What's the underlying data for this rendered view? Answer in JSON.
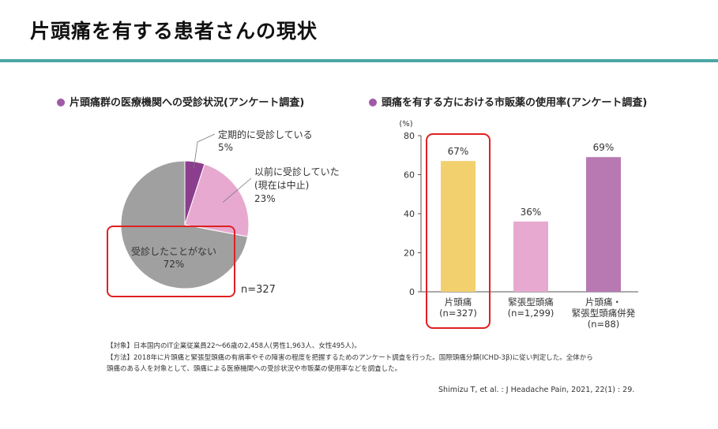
{
  "page": {
    "title": "片頭痛を有する患者さんの現状"
  },
  "colors": {
    "accent_rule": "#4aa6a6",
    "heading_dot": "#a15aa8",
    "highlight_box": "#e02020",
    "pie": [
      "#8b3e8e",
      "#e7a9cf",
      "#a0a0a0"
    ],
    "bars": [
      "#f3d06e",
      "#e7a9cf",
      "#b879b3"
    ]
  },
  "chart_data": [
    {
      "type": "pie",
      "title": "片頭痛群の医療機関への受診状況(アンケート調査)",
      "n_label": "n=327",
      "slices": [
        {
          "label": "定期的に受診している",
          "value": 5,
          "value_label": "5%"
        },
        {
          "label_line1": "以前に受診していた",
          "label_line2": "(現在は中止)",
          "value": 23,
          "value_label": "23%"
        },
        {
          "label": "受診したことがない",
          "value": 72,
          "value_label": "72%"
        }
      ]
    },
    {
      "type": "bar",
      "title": "頭痛を有する方における市販薬の使用率(アンケート調査)",
      "ylabel": "(%)",
      "ylim": [
        0,
        80
      ],
      "yticks": [
        "0",
        "20",
        "40",
        "60",
        "80"
      ],
      "categories": [
        {
          "line1": "片頭痛",
          "line2": "(n=327)"
        },
        {
          "line1": "緊張型頭痛",
          "line2": "(n=1,299)"
        },
        {
          "line1": "片頭痛・",
          "line2": "緊張型頭痛併発",
          "line3": "(n=88)"
        }
      ],
      "values": [
        67,
        36,
        69
      ],
      "value_labels": [
        "67%",
        "36%",
        "69%"
      ]
    }
  ],
  "notes": {
    "line1": "【対象】日本国内のIT企業従業員22～66歳の2,458人(男性1,963人、女性495人)。",
    "line2": "【方法】2018年に片頭痛と緊張型頭痛の有病率やその障害の程度を把握するためのアンケート調査を行った。国際頭痛分類(ICHD-3β)に従い判定した。全体から",
    "line3": "頭痛のある人を対象として、頭痛による医療機関への受診状況や市販薬の使用率などを調査した。"
  },
  "citation": "Shimizu T, et al. : J Headache Pain, 2021, 22(1) : 29."
}
